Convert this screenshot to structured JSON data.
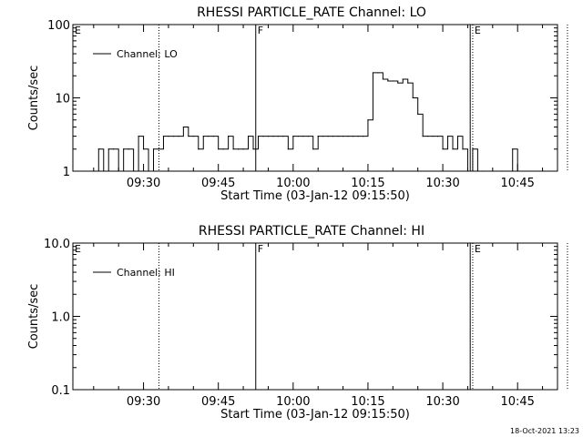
{
  "timestamp": "18-Oct-2021 13:23",
  "chart_data": [
    {
      "type": "line",
      "title": "RHESSI PARTICLE_RATE Channel: LO",
      "xlabel": "Start Time (03-Jan-12 09:15:50)",
      "ylabel": "Counts/sec",
      "yscale": "log",
      "ylim": [
        1,
        100
      ],
      "xlim": [
        "09:15:50",
        "10:53:00"
      ],
      "x_ticks": [
        "09:30",
        "09:45",
        "10:00",
        "10:15",
        "10:30",
        "10:45"
      ],
      "y_ticks": [
        "1",
        "10",
        "100"
      ],
      "legend": "top-left",
      "series": [
        {
          "name": "Channel: LO",
          "x": [
            "09:20",
            "09:21",
            "09:22",
            "09:23",
            "09:24",
            "09:25",
            "09:26",
            "09:27",
            "09:28",
            "09:29",
            "09:30",
            "09:31",
            "09:32",
            "09:33",
            "09:34",
            "09:35",
            "09:36",
            "09:37",
            "09:38",
            "09:39",
            "09:40",
            "09:41",
            "09:42",
            "09:43",
            "09:44",
            "09:45",
            "09:46",
            "09:47",
            "09:48",
            "09:49",
            "09:50",
            "09:51",
            "09:52",
            "09:53",
            "09:54",
            "09:55",
            "09:56",
            "09:57",
            "09:58",
            "09:59",
            "10:00",
            "10:01",
            "10:02",
            "10:03",
            "10:04",
            "10:05",
            "10:06",
            "10:07",
            "10:08",
            "10:09",
            "10:10",
            "10:11",
            "10:12",
            "10:13",
            "10:14",
            "10:15",
            "10:16",
            "10:17",
            "10:18",
            "10:19",
            "10:20",
            "10:21",
            "10:22",
            "10:23",
            "10:24",
            "10:25",
            "10:26",
            "10:27",
            "10:28",
            "10:29",
            "10:30",
            "10:31",
            "10:32",
            "10:33",
            "10:34",
            "10:35",
            "10:36",
            "10:37",
            "10:38",
            "10:42",
            "10:43",
            "10:44",
            "10:45"
          ],
          "values": [
            1,
            2,
            1,
            2,
            2,
            1,
            2,
            2,
            1,
            3,
            2,
            1,
            2,
            2,
            3,
            3,
            3,
            3,
            4,
            3,
            3,
            2,
            3,
            3,
            3,
            2,
            2,
            3,
            2,
            2,
            2,
            3,
            2,
            3,
            3,
            3,
            3,
            3,
            3,
            2,
            3,
            3,
            3,
            3,
            2,
            3,
            3,
            3,
            3,
            3,
            3,
            3,
            3,
            3,
            3,
            5,
            22,
            22,
            18,
            17,
            17,
            16,
            18,
            16,
            10,
            6,
            3,
            3,
            3,
            3,
            2,
            3,
            2,
            3,
            2,
            1,
            2,
            1,
            1,
            1,
            1,
            2,
            1
          ]
        }
      ],
      "markers": [
        {
          "label": "E",
          "time": "09:15:50",
          "style": "dotted"
        },
        {
          "label": "",
          "time": "09:33:05",
          "style": "dotted"
        },
        {
          "label": "F",
          "time": "09:52:30",
          "style": "solid"
        },
        {
          "label": "",
          "time": "10:35:30",
          "style": "solid"
        },
        {
          "label": "E",
          "time": "10:36:00",
          "style": "dotted"
        },
        {
          "label": "",
          "time": "10:55:00",
          "style": "dotted"
        }
      ]
    },
    {
      "type": "line",
      "title": "RHESSI PARTICLE_RATE Channel: HI",
      "xlabel": "Start Time (03-Jan-12 09:15:50)",
      "ylabel": "Counts/sec",
      "yscale": "log",
      "ylim": [
        0.1,
        10
      ],
      "xlim": [
        "09:15:50",
        "10:53:00"
      ],
      "x_ticks": [
        "09:30",
        "09:45",
        "10:00",
        "10:15",
        "10:30",
        "10:45"
      ],
      "y_ticks": [
        "0.1",
        "1.0",
        "10.0"
      ],
      "legend": "top-left",
      "series": [
        {
          "name": "Channel: HI",
          "x": [],
          "values": []
        }
      ],
      "markers": [
        {
          "label": "E",
          "time": "09:15:50",
          "style": "dotted"
        },
        {
          "label": "",
          "time": "09:33:05",
          "style": "dotted"
        },
        {
          "label": "F",
          "time": "09:52:30",
          "style": "solid"
        },
        {
          "label": "",
          "time": "10:35:30",
          "style": "solid"
        },
        {
          "label": "E",
          "time": "10:36:00",
          "style": "dotted"
        },
        {
          "label": "",
          "time": "10:55:00",
          "style": "dotted"
        }
      ]
    }
  ]
}
